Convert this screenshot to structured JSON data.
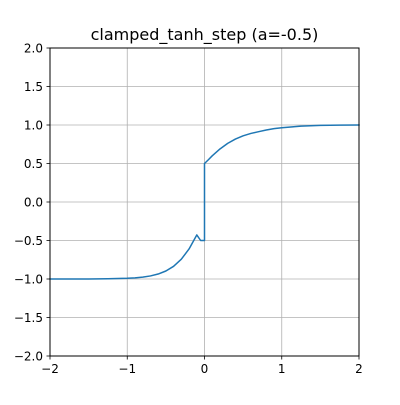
{
  "chart_data": {
    "type": "line",
    "title": "clamped_tanh_step (a=-0.5)",
    "xlabel": "",
    "ylabel": "",
    "xlim": [
      -2,
      2
    ],
    "ylim": [
      -2,
      2
    ],
    "grid": true,
    "xticks": [
      -2,
      -1,
      0,
      1,
      2
    ],
    "xtick_labels": [
      "−2",
      "−1",
      "0",
      "1",
      "2"
    ],
    "yticks": [
      -2.0,
      -1.5,
      -1.0,
      -0.5,
      0.0,
      0.5,
      1.0,
      1.5,
      2.0
    ],
    "ytick_labels": [
      "−2.0",
      "−1.5",
      "−1.0",
      "−0.5",
      "0.0",
      "0.5",
      "1.0",
      "1.5",
      "2.0"
    ],
    "series": [
      {
        "color": "#1f77b4",
        "x": [
          -2.0,
          -1.75,
          -1.5,
          -1.25,
          -1.0,
          -0.9,
          -0.8,
          -0.7,
          -0.6,
          -0.5,
          -0.4,
          -0.3,
          -0.2,
          -0.1,
          -0.05,
          0.0,
          0.0,
          0.05,
          0.1,
          0.2,
          0.3,
          0.4,
          0.5,
          0.6,
          0.7,
          0.8,
          0.9,
          1.0,
          1.25,
          1.5,
          1.75,
          2.0
        ],
        "y": [
          -0.9999,
          -0.9998,
          -0.9993,
          -0.9975,
          -0.9909,
          -0.9852,
          -0.9757,
          -0.9603,
          -0.9354,
          -0.8962,
          -0.8351,
          -0.7431,
          -0.6101,
          -0.428,
          -0.5,
          -0.5,
          0.5,
          0.5488,
          0.6,
          0.6887,
          0.7616,
          0.8176,
          0.8596,
          0.8905,
          0.9131,
          0.9345,
          0.9525,
          0.965,
          0.985,
          0.995,
          0.9985,
          0.9996
        ]
      }
    ]
  }
}
